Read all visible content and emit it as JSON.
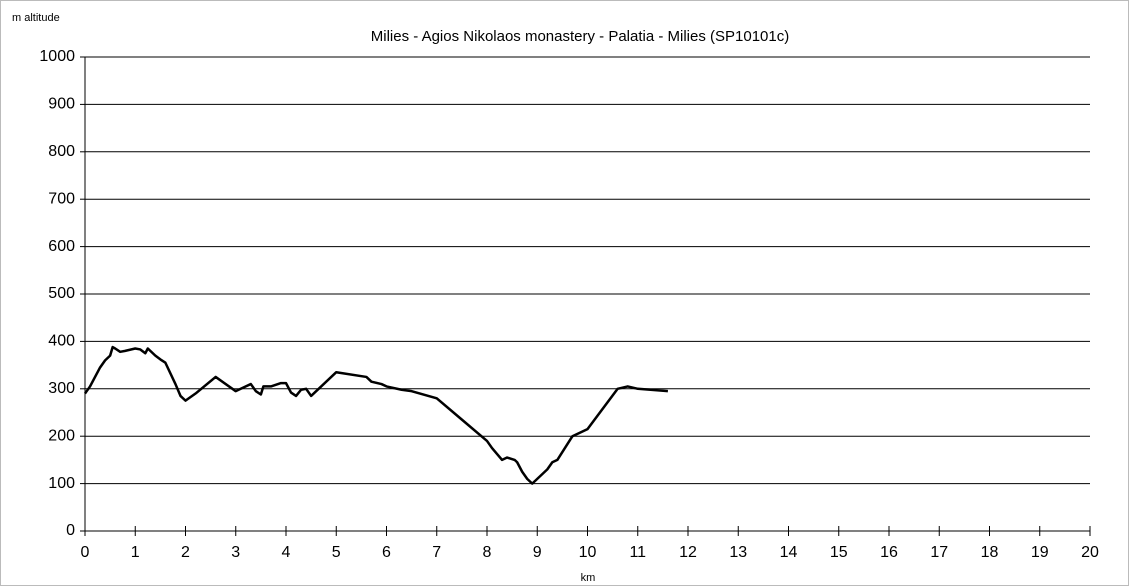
{
  "chart_data": {
    "type": "line",
    "title": "Milies - Agios Nikolaos monastery - Palatia - Milies (SP10101c)",
    "y_label": "m altitude",
    "x_label": "km",
    "xlim": [
      0,
      20
    ],
    "xticks": [
      0,
      1,
      2,
      3,
      4,
      5,
      6,
      7,
      8,
      9,
      10,
      11,
      12,
      13,
      14,
      15,
      16,
      17,
      18,
      19,
      20
    ],
    "ylim": [
      0,
      1000
    ],
    "yticks": [
      0,
      100,
      200,
      300,
      400,
      500,
      600,
      700,
      800,
      900,
      1000
    ],
    "grid": true,
    "series": [
      {
        "color": "#000000",
        "x": [
          0,
          0.1,
          0.3,
          0.4,
          0.5,
          0.55,
          0.6,
          0.7,
          0.8,
          1.0,
          1.1,
          1.2,
          1.25,
          1.4,
          1.5,
          1.6,
          1.8,
          1.9,
          2.0,
          2.2,
          2.6,
          3.0,
          3.2,
          3.3,
          3.4,
          3.5,
          3.55,
          3.7,
          3.9,
          4.0,
          4.1,
          4.2,
          4.3,
          4.4,
          4.5,
          4.7,
          5.0,
          5.6,
          5.7,
          5.9,
          6.0,
          6.3,
          6.5,
          7.0,
          7.5,
          8.0,
          8.1,
          8.3,
          8.4,
          8.55,
          8.6,
          8.7,
          8.8,
          8.9,
          9.0,
          9.2,
          9.3,
          9.4,
          9.7,
          10.0,
          10.6,
          10.8,
          11.0,
          11.6
        ],
        "values": [
          290,
          305,
          345,
          360,
          370,
          388,
          385,
          378,
          380,
          385,
          383,
          375,
          385,
          370,
          362,
          355,
          310,
          285,
          275,
          290,
          325,
          295,
          305,
          310,
          295,
          288,
          305,
          305,
          312,
          312,
          292,
          285,
          298,
          300,
          285,
          305,
          335,
          325,
          315,
          310,
          305,
          298,
          295,
          280,
          235,
          190,
          175,
          150,
          155,
          150,
          145,
          125,
          110,
          100,
          110,
          130,
          145,
          150,
          200,
          215,
          300,
          305,
          300,
          295
        ]
      }
    ]
  }
}
